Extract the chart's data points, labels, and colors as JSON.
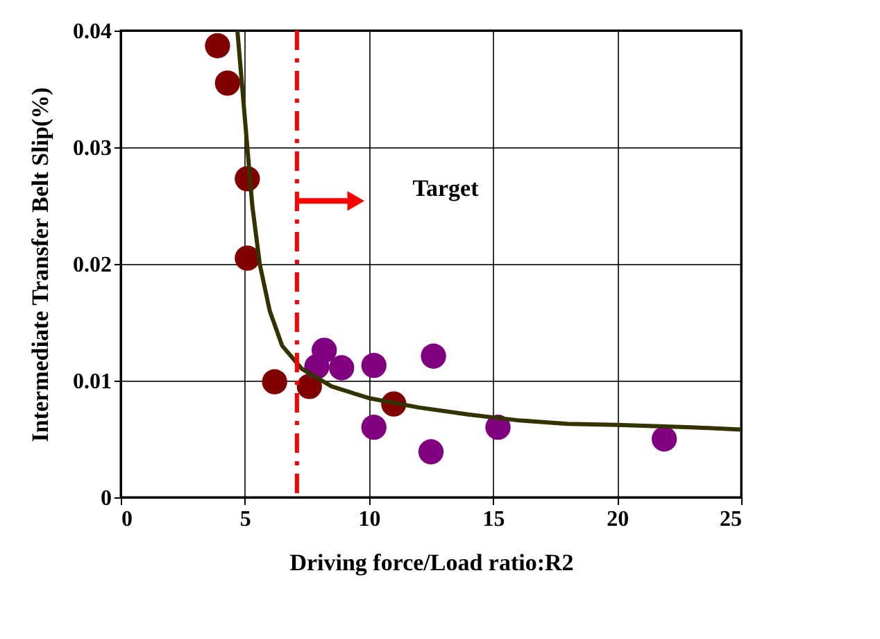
{
  "chart_data": {
    "type": "scatter",
    "xlabel": "Driving force/Load ratio:R2",
    "ylabel": "Intermediate Transfer Belt Slip(%)",
    "series": [
      {
        "color": "#800000",
        "marker": "circle",
        "x": [
          3.9,
          4.3,
          5.1,
          5.1,
          6.2,
          7.6,
          11.0
        ],
        "values": [
          0.0387,
          0.0355,
          0.0273,
          0.0205,
          0.0099,
          0.0095,
          0.008
        ]
      },
      {
        "color": "#800080",
        "marker": "circle",
        "x": [
          8.2,
          7.9,
          8.9,
          10.2,
          12.6,
          10.2,
          12.5,
          15.2,
          21.9
        ],
        "values": [
          0.0126,
          0.0112,
          0.0111,
          0.0113,
          0.0121,
          0.006,
          0.0039,
          0.006,
          0.005
        ]
      },
      {
        "type": "line",
        "color": "#333300",
        "x": [
          4.7,
          4.9,
          5.1,
          5.3,
          5.6,
          6.0,
          6.5,
          7.3,
          8.5,
          10,
          12,
          14,
          16,
          18,
          20,
          23,
          25
        ],
        "values": [
          0.04,
          0.035,
          0.03,
          0.025,
          0.02,
          0.016,
          0.013,
          0.011,
          0.0095,
          0.0085,
          0.0077,
          0.0071,
          0.0066,
          0.0063,
          0.0062,
          0.006,
          0.0058
        ]
      }
    ],
    "xlim": [
      0,
      25
    ],
    "xticks": [
      0,
      5,
      10,
      15,
      20,
      25
    ],
    "ylim": [
      0,
      0.04
    ],
    "yticks": [
      0,
      0.01,
      0.02,
      0.03,
      0.04
    ],
    "ref_lines": [
      {
        "axis": "x",
        "value": 7.1,
        "color": "#ff0000",
        "line_style": "dashdot"
      }
    ],
    "annotations": [
      "Target"
    ],
    "grid": true
  }
}
